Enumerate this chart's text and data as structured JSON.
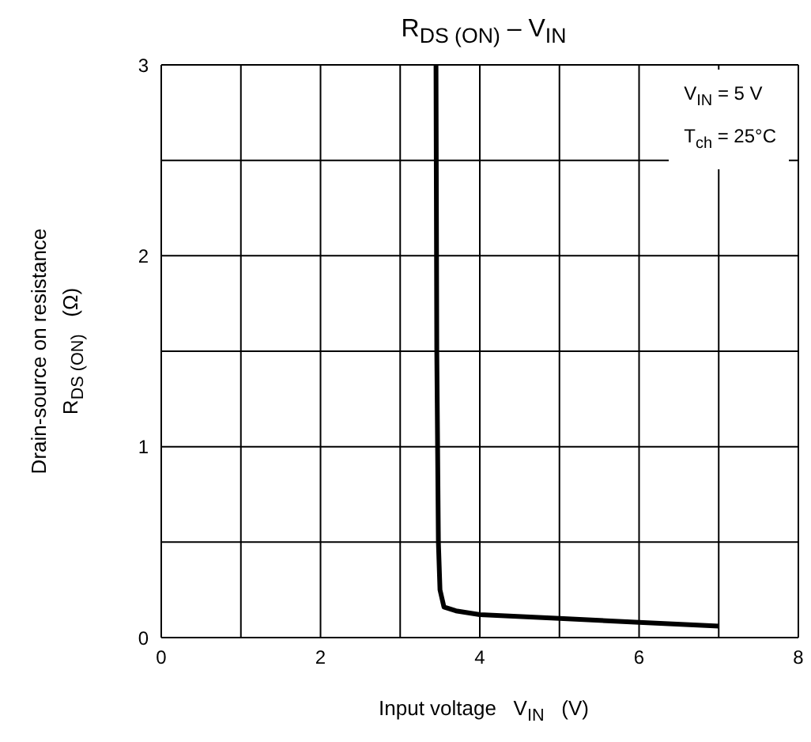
{
  "chart_data": {
    "type": "line",
    "title": "R$_{DS (ON)}$ – V$_{IN}$",
    "xlabel": "Input voltage   V$_{IN}$   (V)",
    "ylabel": "Drain-source on resistance\nR$_{DS (ON)}$   (Ω)",
    "annotations": [
      "V$_{IN}$ = 5 V",
      "T$_{ch}$ = 25°C"
    ],
    "xlim": [
      0,
      8
    ],
    "xticks": [
      0,
      {
        "value": 1,
        "label": null
      },
      2,
      {
        "value": 3,
        "label": null
      },
      4,
      {
        "value": 5,
        "label": null
      },
      6,
      {
        "value": 7,
        "label": null
      },
      8
    ],
    "ylim": [
      0,
      3
    ],
    "yticks": [
      0,
      {
        "value": 0.5,
        "label": null
      },
      1,
      {
        "value": 1.5,
        "label": null
      },
      2,
      {
        "value": 2.5,
        "label": null
      },
      3
    ],
    "grid": true,
    "marker": "none",
    "line_style": "solid",
    "legend": false,
    "series": [
      {
        "color": "#000000",
        "x": [
          3.45,
          3.46,
          3.48,
          3.5,
          3.55,
          3.7,
          4,
          5,
          6,
          7
        ],
        "values": [
          3,
          1.5,
          0.5,
          0.25,
          0.16,
          0.14,
          0.12,
          0.1,
          0.08,
          0.06
        ]
      }
    ]
  }
}
